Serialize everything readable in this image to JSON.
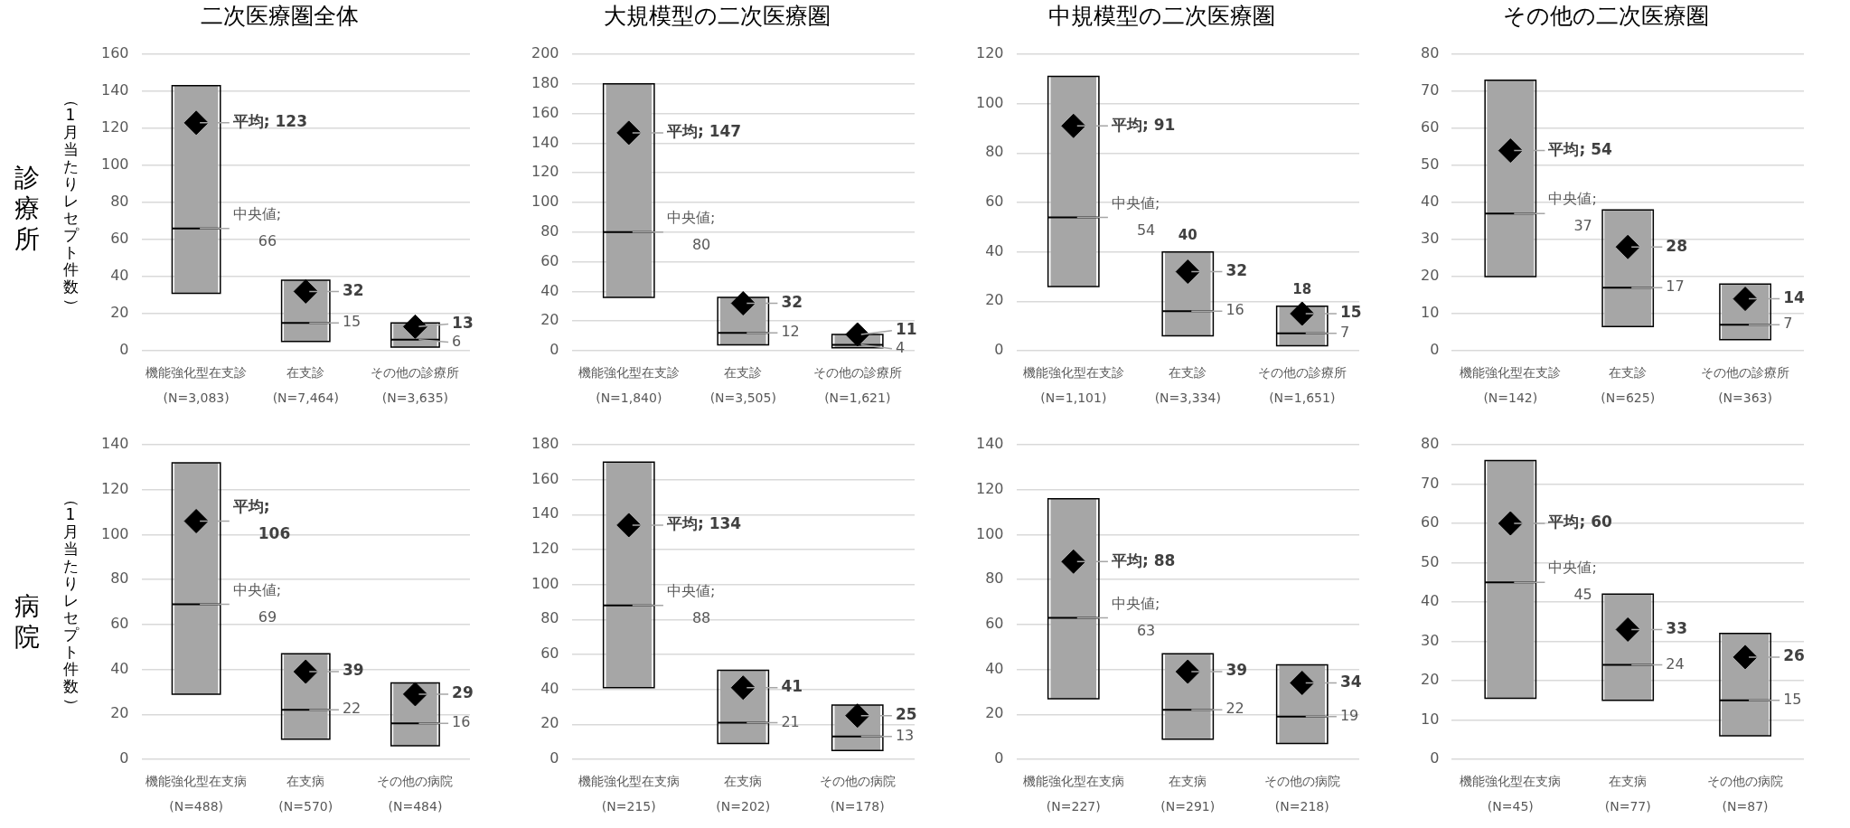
{
  "chart_data": [
    {
      "type": "box",
      "title": "二次医療圏全体",
      "ylabel": "（1月当たりレセプト件数）",
      "color": "#a6a6a6",
      "marker": "diamond",
      "grid": "y",
      "ylim": [
        0,
        160
      ],
      "yticks": [
        0,
        20,
        40,
        60,
        80,
        100,
        120,
        140,
        160
      ],
      "categories": [
        "機能強化型在支診\n(N=3,083)",
        "在支診\n(N=7,464)",
        "その他の診療所\n(N=3,635)"
      ],
      "boxes": [
        {
          "low": 31,
          "q1": 31,
          "median": 66,
          "q3": 143,
          "high": 143
        },
        {
          "low": 5,
          "q1": 5,
          "median": 15,
          "q3": 38,
          "high": 38
        },
        {
          "low": 2,
          "q1": 2,
          "median": 6,
          "q3": 15,
          "high": 15
        }
      ],
      "series": [
        {
          "type": "scatter",
          "color": "#000000",
          "x": [
            "機能強化型在支診\n(N=3,083)",
            "在支診\n(N=7,464)",
            "その他の診療所\n(N=3,635)"
          ],
          "values": [
            123,
            32,
            13
          ],
          "value_labels": [
            "平均; 123",
            "32",
            "13"
          ]
        }
      ],
      "annotations": [
        "診療所",
        {
          "text": "中央値;\n66",
          "x": "機能強化型在支診\n(N=3,083)",
          "y": 66
        },
        {
          "text": "15",
          "x": "在支診\n(N=7,464)",
          "y": 15
        },
        {
          "text": "6",
          "x": "その他の診療所\n(N=3,635)",
          "y": 6
        }
      ]
    },
    {
      "type": "box",
      "title": "大規模型の二次医療圏",
      "color": "#a6a6a6",
      "marker": "diamond",
      "grid": "y",
      "ylim": [
        0,
        200
      ],
      "yticks": [
        0,
        20,
        40,
        60,
        80,
        100,
        120,
        140,
        160,
        180,
        200
      ],
      "categories": [
        "機能強化型在支診\n(N=1,840)",
        "在支診\n(N=3,505)",
        "その他の診療所\n(N=1,621)"
      ],
      "boxes": [
        {
          "low": 36,
          "q1": 36,
          "median": 80,
          "q3": 180,
          "high": 180
        },
        {
          "low": 4,
          "q1": 4,
          "median": 12,
          "q3": 36,
          "high": 36
        },
        {
          "low": 2,
          "q1": 2,
          "median": 4,
          "q3": 11,
          "high": 11
        }
      ],
      "series": [
        {
          "type": "scatter",
          "color": "#000000",
          "x": [
            "機能強化型在支診\n(N=1,840)",
            "在支診\n(N=3,505)",
            "その他の診療所\n(N=1,621)"
          ],
          "values": [
            147,
            32,
            11
          ],
          "value_labels": [
            "平均; 147",
            "32",
            "11"
          ]
        }
      ],
      "annotations": [
        {
          "text": "中央値;\n80",
          "x": "機能強化型在支診\n(N=1,840)",
          "y": 80
        },
        {
          "text": "12",
          "x": "在支診\n(N=3,505)",
          "y": 12
        },
        {
          "text": "4",
          "x": "その他の診療所\n(N=1,621)",
          "y": 4
        }
      ]
    },
    {
      "type": "box",
      "title": "中規模型の二次医療圏",
      "color": "#a6a6a6",
      "marker": "diamond",
      "grid": "y",
      "ylim": [
        0,
        120
      ],
      "yticks": [
        0,
        20,
        40,
        60,
        80,
        100,
        120
      ],
      "categories": [
        "機能強化型在支診\n(N=1,101)",
        "在支診\n(N=3,334)",
        "その他の診療所\n(N=1,651)"
      ],
      "boxes": [
        {
          "low": 26,
          "q1": 26,
          "median": 54,
          "q3": 111,
          "high": 111
        },
        {
          "low": 6,
          "q1": 6,
          "median": 16,
          "q3": 40,
          "high": 40
        },
        {
          "low": 2,
          "q1": 2,
          "median": 7,
          "q3": 18,
          "high": 18
        }
      ],
      "series": [
        {
          "type": "scatter",
          "color": "#000000",
          "x": [
            "機能強化型在支診\n(N=1,101)",
            "在支診\n(N=3,334)",
            "その他の診療所\n(N=1,651)"
          ],
          "values": [
            91,
            32,
            15
          ],
          "value_labels": [
            "平均; 91",
            "32",
            "15"
          ]
        }
      ],
      "annotations": [
        {
          "text": "中央値;\n54",
          "x": "機能強化型在支診\n(N=1,101)",
          "y": 54
        },
        {
          "text": "40",
          "x": "在支診\n(N=3,334)",
          "y": 40
        },
        {
          "text": "16",
          "x": "在支診\n(N=3,334)",
          "y": 16
        },
        {
          "text": "18",
          "x": "その他の診療所\n(N=1,651)",
          "y": 18
        },
        {
          "text": "7",
          "x": "その他の診療所\n(N=1,651)",
          "y": 7
        }
      ]
    },
    {
      "type": "box",
      "title": "その他の二次医療圏",
      "color": "#a6a6a6",
      "marker": "diamond",
      "grid": "y",
      "ylim": [
        0,
        80
      ],
      "yticks": [
        0,
        10,
        20,
        30,
        40,
        50,
        60,
        70,
        80
      ],
      "categories": [
        "機能強化型在支診\n(N=142)",
        "在支診\n(N=625)",
        "その他の診療所\n(N=363)"
      ],
      "boxes": [
        {
          "low": 20,
          "q1": 20,
          "median": 37,
          "q3": 73,
          "high": 73
        },
        {
          "low": 6.5,
          "q1": 6.5,
          "median": 17,
          "q3": 38,
          "high": 38
        },
        {
          "low": 3,
          "q1": 3,
          "median": 7,
          "q3": 18,
          "high": 18
        }
      ],
      "series": [
        {
          "type": "scatter",
          "color": "#000000",
          "x": [
            "機能強化型在支診\n(N=142)",
            "在支診\n(N=625)",
            "その他の診療所\n(N=363)"
          ],
          "values": [
            54,
            28,
            14
          ],
          "value_labels": [
            "平均; 54",
            "28",
            "14"
          ]
        }
      ],
      "annotations": [
        {
          "text": "中央値;\n37",
          "x": "機能強化型在支診\n(N=142)",
          "y": 37
        },
        {
          "text": "17",
          "x": "在支診\n(N=625)",
          "y": 17
        },
        {
          "text": "7",
          "x": "その他の診療所\n(N=363)",
          "y": 7
        }
      ]
    },
    {
      "type": "box",
      "ylabel": "（1月当たりレセプト件数）",
      "color": "#a6a6a6",
      "marker": "diamond",
      "grid": "y",
      "ylim": [
        0,
        140
      ],
      "yticks": [
        0,
        20,
        40,
        60,
        80,
        100,
        120,
        140
      ],
      "categories": [
        "機能強化型在支病\n(N=488)",
        "在支病\n(N=570)",
        "その他の病院\n(N=484)"
      ],
      "boxes": [
        {
          "low": 29,
          "q1": 29,
          "median": 69,
          "q3": 132,
          "high": 132
        },
        {
          "low": 9,
          "q1": 9,
          "median": 22,
          "q3": 47,
          "high": 47
        },
        {
          "low": 6,
          "q1": 6,
          "median": 16,
          "q3": 34,
          "high": 34
        }
      ],
      "series": [
        {
          "type": "scatter",
          "color": "#000000",
          "x": [
            "機能強化型在支病\n(N=488)",
            "在支病\n(N=570)",
            "その他の病院\n(N=484)"
          ],
          "values": [
            106,
            39,
            29
          ],
          "value_labels": [
            "平均;\n106",
            "39",
            "29"
          ]
        }
      ],
      "annotations": [
        "病院",
        {
          "text": "中央値;\n69",
          "x": "機能強化型在支病\n(N=488)",
          "y": 69
        },
        {
          "text": "22",
          "x": "在支病\n(N=570)",
          "y": 22
        },
        {
          "text": "16",
          "x": "その他の病院\n(N=484)",
          "y": 16
        }
      ]
    },
    {
      "type": "box",
      "color": "#a6a6a6",
      "marker": "diamond",
      "grid": "y",
      "ylim": [
        0,
        180
      ],
      "yticks": [
        0,
        20,
        40,
        60,
        80,
        100,
        120,
        140,
        160,
        180
      ],
      "categories": [
        "機能強化型在支病\n(N=215)",
        "在支病\n(N=202)",
        "その他の病院\n(N=178)"
      ],
      "boxes": [
        {
          "low": 41,
          "q1": 41,
          "median": 88,
          "q3": 170,
          "high": 170
        },
        {
          "low": 9,
          "q1": 9,
          "median": 21,
          "q3": 51,
          "high": 51
        },
        {
          "low": 5,
          "q1": 5,
          "median": 13,
          "q3": 31,
          "high": 31
        }
      ],
      "series": [
        {
          "type": "scatter",
          "color": "#000000",
          "x": [
            "機能強化型在支病\n(N=215)",
            "在支病\n(N=202)",
            "その他の病院\n(N=178)"
          ],
          "values": [
            134,
            41,
            25
          ],
          "value_labels": [
            "平均; 134",
            "41",
            "25"
          ]
        }
      ],
      "annotations": [
        {
          "text": "中央値;\n88",
          "x": "機能強化型在支病\n(N=215)",
          "y": 88
        },
        {
          "text": "21",
          "x": "在支病\n(N=202)",
          "y": 21
        },
        {
          "text": "13",
          "x": "その他の病院\n(N=178)",
          "y": 13
        }
      ]
    },
    {
      "type": "box",
      "color": "#a6a6a6",
      "marker": "diamond",
      "grid": "y",
      "ylim": [
        0,
        140
      ],
      "yticks": [
        0,
        20,
        40,
        60,
        80,
        100,
        120,
        140
      ],
      "categories": [
        "機能強化型在支病\n(N=227)",
        "在支病\n(N=291)",
        "その他の病院\n(N=218)"
      ],
      "boxes": [
        {
          "low": 27,
          "q1": 27,
          "median": 63,
          "q3": 116,
          "high": 116
        },
        {
          "low": 9,
          "q1": 9,
          "median": 22,
          "q3": 47,
          "high": 47
        },
        {
          "low": 7,
          "q1": 7,
          "median": 19,
          "q3": 42,
          "high": 42
        }
      ],
      "series": [
        {
          "type": "scatter",
          "color": "#000000",
          "x": [
            "機能強化型在支病\n(N=227)",
            "在支病\n(N=291)",
            "その他の病院\n(N=218)"
          ],
          "values": [
            88,
            39,
            34
          ],
          "value_labels": [
            "平均; 88",
            "39",
            "34"
          ]
        }
      ],
      "annotations": [
        {
          "text": "中央値;\n63",
          "x": "機能強化型在支病\n(N=227)",
          "y": 63
        },
        {
          "text": "22",
          "x": "在支病\n(N=291)",
          "y": 22
        },
        {
          "text": "19",
          "x": "その他の病院\n(N=218)",
          "y": 19
        }
      ]
    },
    {
      "type": "box",
      "color": "#a6a6a6",
      "marker": "diamond",
      "grid": "y",
      "ylim": [
        0,
        80
      ],
      "yticks": [
        0,
        10,
        20,
        30,
        40,
        50,
        60,
        70,
        80
      ],
      "categories": [
        "機能強化型在支病\n(N=45)",
        "在支病\n(N=77)",
        "その他の病院\n(N=87)"
      ],
      "boxes": [
        {
          "low": 15.5,
          "q1": 15.5,
          "median": 45,
          "q3": 76,
          "high": 76
        },
        {
          "low": 15,
          "q1": 15,
          "median": 24,
          "q3": 42,
          "high": 42
        },
        {
          "low": 6,
          "q1": 6,
          "median": 15,
          "q3": 32,
          "high": 32
        }
      ],
      "series": [
        {
          "type": "scatter",
          "color": "#000000",
          "x": [
            "機能強化型在支病\n(N=45)",
            "在支病\n(N=77)",
            "その他の病院\n(N=87)"
          ],
          "values": [
            60,
            33,
            26
          ],
          "value_labels": [
            "平均; 60",
            "33",
            "26"
          ]
        }
      ],
      "annotations": [
        {
          "text": "中央値;\n45",
          "x": "機能強化型在支病\n(N=45)",
          "y": 45
        },
        {
          "text": "24",
          "x": "在支病\n(N=77)",
          "y": 24
        },
        {
          "text": "15",
          "x": "その他の病院\n(N=87)",
          "y": 15
        }
      ]
    }
  ]
}
